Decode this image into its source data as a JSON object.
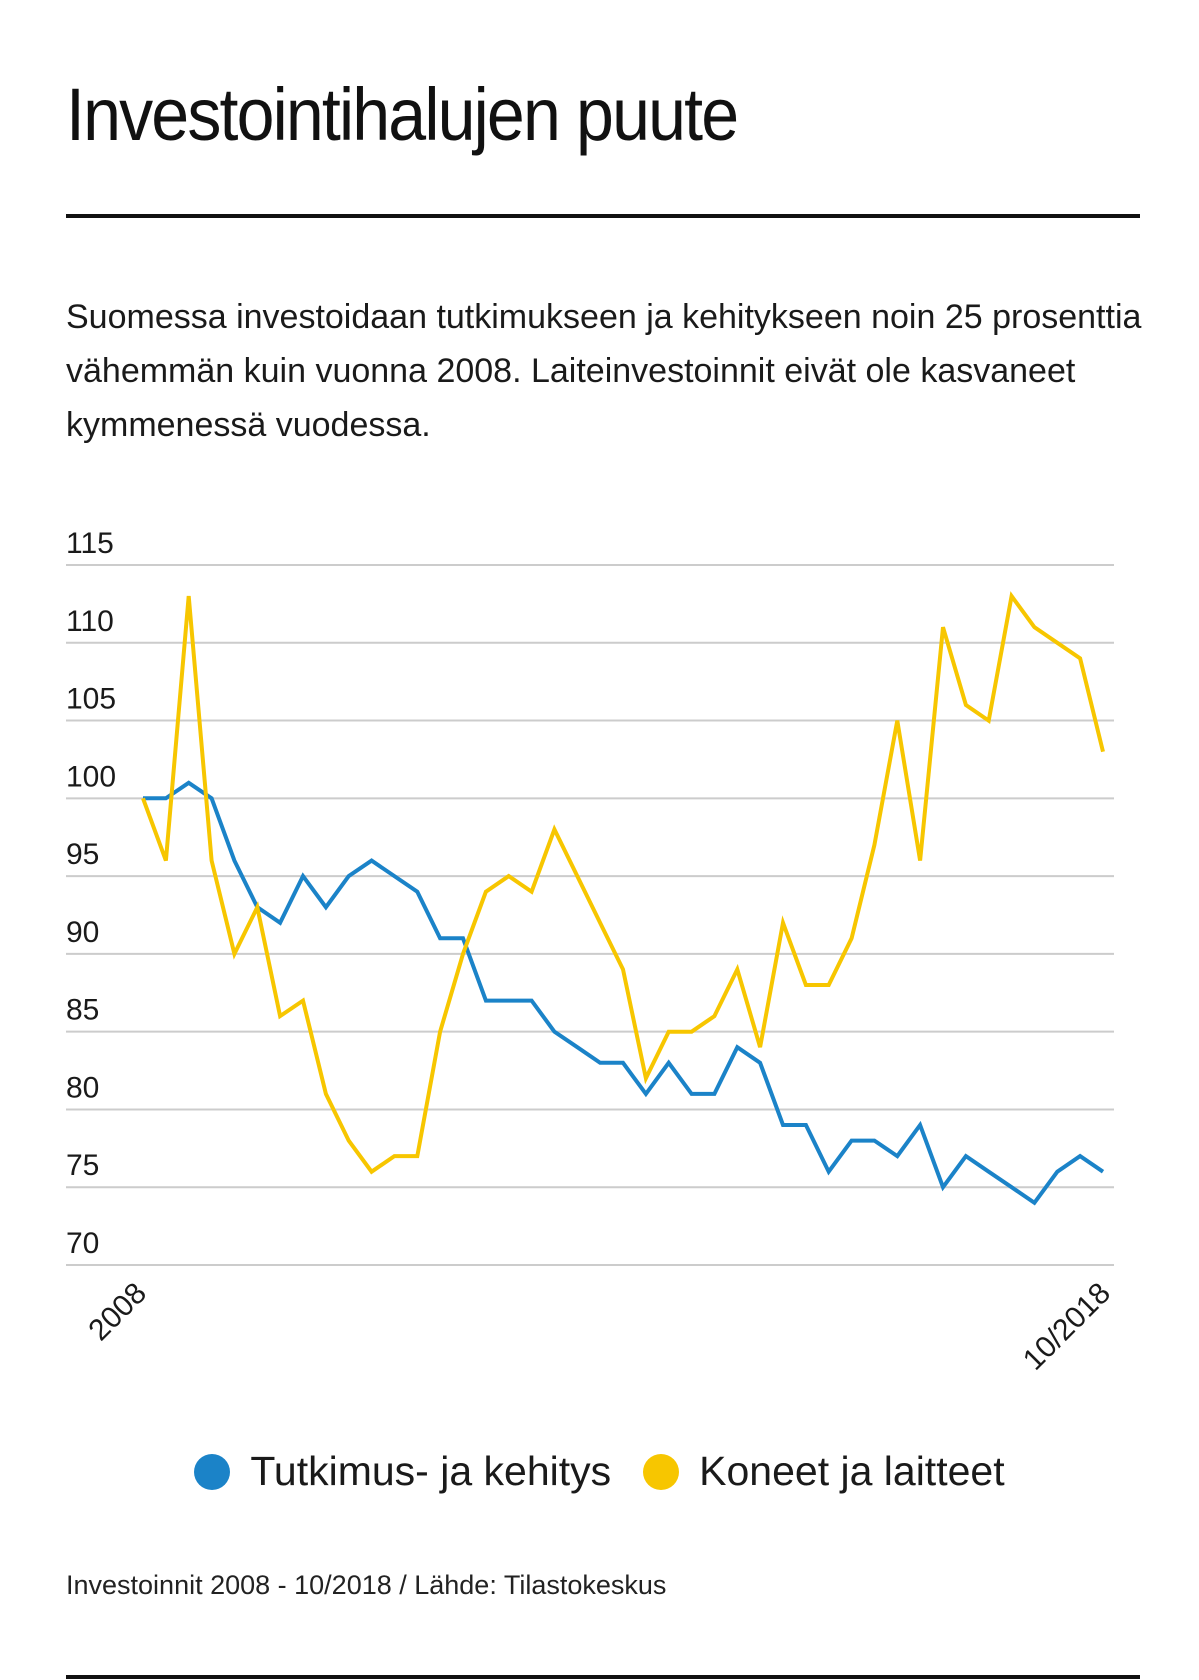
{
  "title": "Investointihalujen puute",
  "subtitle": "Suomessa investoidaan tutkimukseen ja kehitykseen noin 25 prosenttia vähemmän kuin vuonna 2008. Laiteinvestoinnit eivät ole kasvaneet kymmenessä vuodessa.",
  "source": "Investoinnit 2008 - 10/2018 / Lähde: Tilastokeskus",
  "colors": {
    "series_blue": "#1b83c8",
    "series_yellow": "#f7c600",
    "grid": "#cccccc",
    "text": "#1a1a1a"
  },
  "legend": [
    {
      "label": "Tutkimus- ja kehitys",
      "color": "#1b83c8"
    },
    {
      "label": "Koneet ja laitteet",
      "color": "#f7c600"
    }
  ],
  "chart_data": {
    "type": "line",
    "title": "Investointihalujen puute",
    "xlabel": "",
    "ylabel": "",
    "ylim": [
      70,
      115
    ],
    "yticks": [
      115,
      110,
      105,
      100,
      95,
      90,
      85,
      80,
      75,
      70
    ],
    "xtick_labels": [
      "2008",
      "10/2018"
    ],
    "grid": true,
    "legend_position": "bottom",
    "series": [
      {
        "name": "Tutkimus- ja kehitys",
        "color": "#1b83c8",
        "values": [
          100,
          100,
          101,
          100,
          96,
          93,
          92,
          95,
          93,
          95,
          96,
          95,
          94,
          91,
          91,
          87,
          87,
          87,
          85,
          84,
          83,
          83,
          81,
          83,
          81,
          81,
          84,
          83,
          79,
          79,
          76,
          78,
          78,
          77,
          79,
          75,
          77,
          76,
          75,
          74,
          76,
          77,
          76
        ]
      },
      {
        "name": "Koneet ja laitteet",
        "color": "#f7c600",
        "values": [
          100,
          96,
          113,
          96,
          90,
          93,
          86,
          87,
          81,
          78,
          76,
          77,
          77,
          85,
          90,
          94,
          95,
          94,
          98,
          95,
          92,
          89,
          82,
          85,
          85,
          86,
          89,
          84,
          92,
          88,
          88,
          91,
          97,
          105,
          96,
          111,
          106,
          105,
          113,
          111,
          110,
          109,
          103
        ]
      }
    ]
  }
}
